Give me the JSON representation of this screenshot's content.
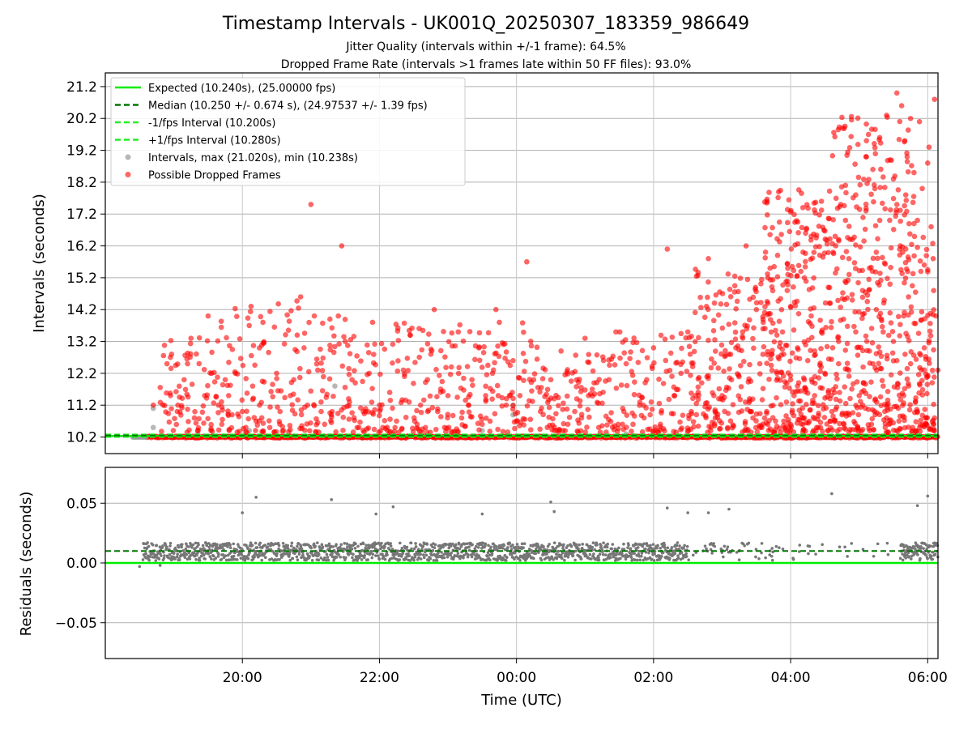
{
  "chart_data": [
    {
      "type": "scatter",
      "title": "Timestamp Intervals - UK001Q_20250307_183359_986649",
      "subtitle_lines": [
        "Jitter Quality (intervals within +/-1 frame): 64.5%",
        "Dropped Frame Rate (intervals >1 frames late within 50 FF files): 93.0%"
      ],
      "ylabel": "Intervals (seconds)",
      "xlabel": "",
      "ylim": [
        9.68,
        21.63
      ],
      "xlim_hours": [
        18.0,
        30.15
      ],
      "yticks": [
        "10.2",
        "11.2",
        "12.2",
        "13.2",
        "14.2",
        "15.2",
        "16.2",
        "17.2",
        "18.2",
        "19.2",
        "20.2",
        "21.2"
      ],
      "ytick_values": [
        10.2,
        11.2,
        12.2,
        13.2,
        14.2,
        15.2,
        16.2,
        17.2,
        18.2,
        19.2,
        20.2,
        21.2
      ],
      "grid": true,
      "legend_placement": "upper-left",
      "legend": [
        "Expected (10.240s), (25.00000 fps)",
        "Median (10.250 +/- 0.674 s), (24.97537 +/- 1.39 fps)",
        "-1/fps Interval (10.200s)",
        "+1/fps Interval (10.280s)",
        "Intervals, max (21.020s), min (10.238s)",
        "Possible Dropped Frames"
      ],
      "lines": {
        "expected": 10.24,
        "median": 10.25,
        "minus_one_fps": 10.2,
        "plus_one_fps": 10.28
      },
      "colors": {
        "expected": "#00ee00",
        "median": "#007700",
        "fps_bounds": "#22ee22",
        "intervals": "#999999",
        "dropped": "#ff0000"
      },
      "baseline_range_hours": [
        18.6,
        30.15
      ],
      "gray_points": [
        [
          18.7,
          10.5
        ],
        [
          18.7,
          11.1
        ],
        [
          19.35,
          10.3
        ],
        [
          20.1,
          10.4
        ],
        [
          21.35,
          11.8
        ],
        [
          22.2,
          10.3
        ],
        [
          23.5,
          10.4
        ],
        [
          23.95,
          10.9
        ],
        [
          23.95,
          11.2
        ],
        [
          25.6,
          10.3
        ]
      ],
      "series": [
        {
          "name": "Possible Dropped Frames",
          "points": [
            [
              18.7,
              11.2
            ],
            [
              18.9,
              12.5
            ],
            [
              18.95,
              12.7
            ],
            [
              19.05,
              11.0
            ],
            [
              19.15,
              12.0
            ],
            [
              19.2,
              12.5
            ],
            [
              19.25,
              13.3
            ],
            [
              19.3,
              10.8
            ],
            [
              19.45,
              11.5
            ],
            [
              19.5,
              14.0
            ],
            [
              19.55,
              12.2
            ],
            [
              19.65,
              11.2
            ],
            [
              19.7,
              10.6
            ],
            [
              19.75,
              12.0
            ],
            [
              19.8,
              11.5
            ],
            [
              19.85,
              10.9
            ],
            [
              19.9,
              12.2
            ],
            [
              20.0,
              11.0
            ],
            [
              20.05,
              10.5
            ],
            [
              20.1,
              13.7
            ],
            [
              20.15,
              11.8
            ],
            [
              20.2,
              10.7
            ],
            [
              20.25,
              11.2
            ],
            [
              20.3,
              13.8
            ],
            [
              20.4,
              10.5
            ],
            [
              20.5,
              12.2
            ],
            [
              20.55,
              11.0
            ],
            [
              20.6,
              10.4
            ],
            [
              20.7,
              11.5
            ],
            [
              20.75,
              12.0
            ],
            [
              20.8,
              13.4
            ],
            [
              20.85,
              14.6
            ],
            [
              20.9,
              13.0
            ],
            [
              20.95,
              11.2
            ],
            [
              21.0,
              17.5
            ],
            [
              21.05,
              14.0
            ],
            [
              21.1,
              12.3
            ],
            [
              21.15,
              11.0
            ],
            [
              21.2,
              10.6
            ],
            [
              21.3,
              10.9
            ],
            [
              21.4,
              14.0
            ],
            [
              21.45,
              16.2
            ],
            [
              21.5,
              13.2
            ],
            [
              21.55,
              11.4
            ],
            [
              21.6,
              12.0
            ],
            [
              21.7,
              10.5
            ],
            [
              21.8,
              11.0
            ],
            [
              21.85,
              12.2
            ],
            [
              21.9,
              13.8
            ],
            [
              22.0,
              11.2
            ],
            [
              22.05,
              10.5
            ],
            [
              22.15,
              11.6
            ],
            [
              22.25,
              10.7
            ],
            [
              22.35,
              12.3
            ],
            [
              22.45,
              13.4
            ],
            [
              22.55,
              10.6
            ],
            [
              22.6,
              11.2
            ],
            [
              22.7,
              12.0
            ],
            [
              22.75,
              12.8
            ],
            [
              22.8,
              14.2
            ],
            [
              22.85,
              11.0
            ],
            [
              22.95,
              10.5
            ],
            [
              23.0,
              11.5
            ],
            [
              23.05,
              12.4
            ],
            [
              23.15,
              13.5
            ],
            [
              23.2,
              10.8
            ],
            [
              23.3,
              11.2
            ],
            [
              23.35,
              12.0
            ],
            [
              23.45,
              13.0
            ],
            [
              23.5,
              10.6
            ],
            [
              23.55,
              11.5
            ],
            [
              23.65,
              12.2
            ],
            [
              23.7,
              14.2
            ],
            [
              23.75,
              13.8
            ],
            [
              23.85,
              11.2
            ],
            [
              23.95,
              12.6
            ],
            [
              24.0,
              10.7
            ],
            [
              24.05,
              11.5
            ],
            [
              24.15,
              15.7
            ],
            [
              24.25,
              12.0
            ],
            [
              24.35,
              11.0
            ],
            [
              24.45,
              10.5
            ],
            [
              24.5,
              12.0
            ],
            [
              24.55,
              11.4
            ],
            [
              24.65,
              12.9
            ],
            [
              24.75,
              10.6
            ],
            [
              24.85,
              11.0
            ],
            [
              24.95,
              10.8
            ],
            [
              25.0,
              13.3
            ],
            [
              25.05,
              11.5
            ],
            [
              25.2,
              10.5
            ],
            [
              25.35,
              12.0
            ],
            [
              25.45,
              13.5
            ],
            [
              25.55,
              11.1
            ],
            [
              25.6,
              12.5
            ],
            [
              25.7,
              10.6
            ],
            [
              25.8,
              11.3
            ],
            [
              25.9,
              12.0
            ],
            [
              25.95,
              10.9
            ],
            [
              26.0,
              13.0
            ],
            [
              26.1,
              10.6
            ],
            [
              26.2,
              16.1
            ],
            [
              26.3,
              11.5
            ],
            [
              26.4,
              12.2
            ],
            [
              26.5,
              13.5
            ],
            [
              26.55,
              11.0
            ],
            [
              26.65,
              11.6
            ],
            [
              26.8,
              15.8
            ],
            [
              26.9,
              10.8
            ],
            [
              27.0,
              11.5
            ],
            [
              27.1,
              12.8
            ],
            [
              27.2,
              13.0
            ],
            [
              27.3,
              13.5
            ],
            [
              27.35,
              16.2
            ],
            [
              27.4,
              11.4
            ],
            [
              27.45,
              10.8
            ],
            [
              27.5,
              14.2
            ],
            [
              27.55,
              12.5
            ],
            [
              27.6,
              13.8
            ],
            [
              27.65,
              11.0
            ],
            [
              27.7,
              15.5
            ],
            [
              27.8,
              12.2
            ],
            [
              27.9,
              10.7
            ],
            [
              27.95,
              14.8
            ],
            [
              28.0,
              12.0
            ],
            [
              28.05,
              11.5
            ],
            [
              28.1,
              13.0
            ],
            [
              28.15,
              15.4
            ],
            [
              28.2,
              10.8
            ],
            [
              28.25,
              12.6
            ],
            [
              28.3,
              14.0
            ],
            [
              28.35,
              11.5
            ],
            [
              28.4,
              10.5
            ],
            [
              28.45,
              13.5
            ],
            [
              28.5,
              12.2
            ],
            [
              28.55,
              14.9
            ],
            [
              28.6,
              11.0
            ],
            [
              28.65,
              16.5
            ],
            [
              28.7,
              12.5
            ],
            [
              28.75,
              10.9
            ],
            [
              28.8,
              17.0
            ],
            [
              28.85,
              15.8
            ],
            [
              28.9,
              16.4
            ],
            [
              28.95,
              13.5
            ],
            [
              29.0,
              11.5
            ],
            [
              29.05,
              14.8
            ],
            [
              29.1,
              17.3
            ],
            [
              29.15,
              15.5
            ],
            [
              29.2,
              12.5
            ],
            [
              29.25,
              16.0
            ],
            [
              29.3,
              17.0
            ],
            [
              29.35,
              13.5
            ],
            [
              29.4,
              10.8
            ],
            [
              29.45,
              15.0
            ],
            [
              29.5,
              18.3
            ],
            [
              29.55,
              17.5
            ],
            [
              29.6,
              16.2
            ],
            [
              29.65,
              14.0
            ],
            [
              29.7,
              19.0
            ],
            [
              29.75,
              12.5
            ],
            [
              29.8,
              18.5
            ],
            [
              29.85,
              17.0
            ],
            [
              29.9,
              15.4
            ],
            [
              29.95,
              13.0
            ],
            [
              30.0,
              18.8
            ],
            [
              30.05,
              16.8
            ],
            [
              30.1,
              20.8
            ],
            [
              30.15,
              12.3
            ],
            [
              29.3,
              19.6
            ],
            [
              29.4,
              20.3
            ],
            [
              29.55,
              21.0
            ],
            [
              29.62,
              20.6
            ],
            [
              29.75,
              20.2
            ],
            [
              29.88,
              20.1
            ],
            [
              30.02,
              19.3
            ],
            [
              29.45,
              18.9
            ],
            [
              29.2,
              18.6
            ],
            [
              29.1,
              19.0
            ],
            [
              28.95,
              17.8
            ],
            [
              28.8,
              18.1
            ],
            [
              29.68,
              17.8
            ],
            [
              29.8,
              16.9
            ],
            [
              29.92,
              18.0
            ],
            [
              30.08,
              15.8
            ],
            [
              28.3,
              16.5
            ],
            [
              28.45,
              17.6
            ],
            [
              28.62,
              16.0
            ],
            [
              28.2,
              15.2
            ],
            [
              28.9,
              14.5
            ],
            [
              29.25,
              14.2
            ],
            [
              29.5,
              13.2
            ],
            [
              29.72,
              14.6
            ],
            [
              29.95,
              15.6
            ],
            [
              30.12,
              14.0
            ],
            [
              27.8,
              13.4
            ],
            [
              27.9,
              12.8
            ],
            [
              28.0,
              14.3
            ],
            [
              28.1,
              11.8
            ],
            [
              28.2,
              12.0
            ],
            [
              28.35,
              12.9
            ],
            [
              28.55,
              11.6
            ],
            [
              28.7,
              13.2
            ],
            [
              28.85,
              12.3
            ],
            [
              29.05,
              11.2
            ],
            [
              29.15,
              12.9
            ],
            [
              29.35,
              11.8
            ],
            [
              29.55,
              12.6
            ],
            [
              29.65,
              11.5
            ],
            [
              29.85,
              11.0
            ],
            [
              30.0,
              12.1
            ],
            [
              30.1,
              10.8
            ],
            [
              29.98,
              10.6
            ],
            [
              29.78,
              10.5
            ],
            [
              29.58,
              10.7
            ],
            [
              29.38,
              10.5
            ],
            [
              29.18,
              10.6
            ],
            [
              28.98,
              10.5
            ],
            [
              28.78,
              10.6
            ],
            [
              28.58,
              10.7
            ],
            [
              28.38,
              10.5
            ],
            [
              28.18,
              10.6
            ],
            [
              27.98,
              10.5
            ],
            [
              27.78,
              10.7
            ],
            [
              27.58,
              10.5
            ]
          ]
        }
      ]
    },
    {
      "type": "scatter",
      "title": "",
      "xlabel": "Time (UTC)",
      "ylabel": "Residuals (seconds)",
      "ylim": [
        -0.08,
        0.08
      ],
      "xlim_hours": [
        18.0,
        30.15
      ],
      "yticks": [
        "−0.05",
        "0.00",
        "0.05"
      ],
      "ytick_values": [
        -0.05,
        0.0,
        0.05
      ],
      "xticks": [
        "20:00",
        "22:00",
        "00:00",
        "02:00",
        "04:00",
        "06:00"
      ],
      "xtick_hours": [
        20,
        22,
        24,
        26,
        28,
        30
      ],
      "grid": true,
      "lines": {
        "zero": 0.0,
        "median": 0.01
      },
      "colors": {
        "zero": "#00ee00",
        "median": "#007700",
        "points": "#777777"
      },
      "band_hours": [
        18.55,
        30.15
      ],
      "band_range": [
        0.002,
        0.017
      ],
      "outliers": [
        [
          18.6,
          0.016
        ],
        [
          20.0,
          0.042
        ],
        [
          20.2,
          0.055
        ],
        [
          21.3,
          0.053
        ],
        [
          21.95,
          0.041
        ],
        [
          22.2,
          0.047
        ],
        [
          23.5,
          0.041
        ],
        [
          24.5,
          0.051
        ],
        [
          24.55,
          0.043
        ],
        [
          26.2,
          0.046
        ],
        [
          26.5,
          0.042
        ],
        [
          26.8,
          0.042
        ],
        [
          27.1,
          0.045
        ],
        [
          28.6,
          0.058
        ],
        [
          29.85,
          0.048
        ],
        [
          30.0,
          0.056
        ],
        [
          18.5,
          -0.003
        ],
        [
          18.8,
          -0.002
        ]
      ]
    }
  ]
}
